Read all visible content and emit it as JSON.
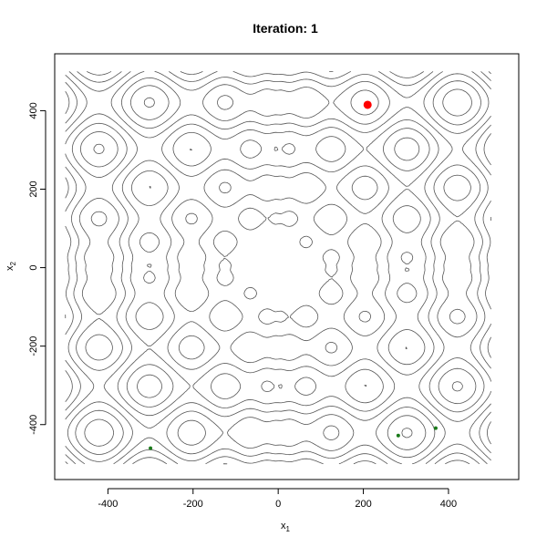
{
  "chart_data": {
    "type": "contour",
    "title": "Iteration: 1",
    "xlabel": "x",
    "xlabel_sub": "1",
    "ylabel": "x",
    "ylabel_sub": "2",
    "xlim": [
      -525,
      565
    ],
    "ylim": [
      -540,
      545
    ],
    "x_ticks": [
      -400,
      -200,
      0,
      200,
      400
    ],
    "y_ticks": [
      -400,
      -200,
      0,
      200,
      400
    ],
    "x_tick_labels": [
      "-400",
      "-200",
      "0",
      "200",
      "400"
    ],
    "y_tick_labels": [
      "-400",
      "-200",
      "0",
      "200",
      "400"
    ],
    "domain": [
      -500,
      500
    ],
    "grid": false,
    "contour_color": "#555555",
    "series": [
      {
        "role": "best-point",
        "color": "#ff0000",
        "points": [
          [
            210,
            415
          ]
        ]
      },
      {
        "role": "population-points",
        "color": "#1a7a1a",
        "points": [
          [
            -300,
            -460
          ],
          [
            282,
            -428
          ],
          [
            370,
            -409
          ]
        ]
      }
    ]
  }
}
